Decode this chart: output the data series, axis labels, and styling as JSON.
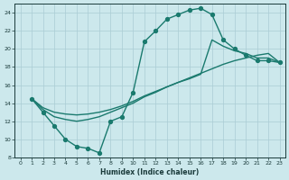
{
  "curve_x": [
    1,
    2,
    3,
    4,
    5,
    6,
    7,
    8,
    9,
    10,
    11,
    12,
    13,
    14,
    15,
    16,
    17,
    18,
    19,
    20,
    21,
    22,
    23
  ],
  "curve_y": [
    14.5,
    13.0,
    11.5,
    10.0,
    9.2,
    9.0,
    8.5,
    12.0,
    12.5,
    15.2,
    20.8,
    22.0,
    23.3,
    23.8,
    24.3,
    24.5,
    23.8,
    21.0,
    20.0,
    19.3,
    18.7,
    18.7,
    18.5
  ],
  "line2_x": [
    1,
    2,
    3,
    4,
    5,
    6,
    7,
    8,
    9,
    10,
    11,
    12,
    13,
    14,
    15,
    16,
    17,
    18,
    19,
    20,
    21,
    22,
    23
  ],
  "line2_y": [
    14.5,
    13.5,
    13.0,
    12.8,
    12.7,
    12.8,
    13.0,
    13.3,
    13.7,
    14.2,
    14.8,
    15.3,
    15.8,
    16.3,
    16.7,
    17.2,
    21.0,
    20.3,
    19.8,
    19.5,
    19.0,
    19.0,
    18.5
  ],
  "line3_x": [
    1,
    2,
    3,
    4,
    5,
    6,
    7,
    8,
    9,
    10,
    11,
    12,
    13,
    14,
    15,
    16,
    17,
    18,
    19,
    20,
    21,
    22,
    23
  ],
  "line3_y": [
    14.5,
    13.3,
    12.5,
    12.2,
    12.0,
    12.2,
    12.5,
    13.0,
    13.5,
    14.0,
    14.7,
    15.2,
    15.8,
    16.3,
    16.8,
    17.3,
    17.8,
    18.3,
    18.7,
    19.0,
    19.3,
    19.5,
    18.5
  ],
  "line_color": "#1a7a6e",
  "bg_color": "#cce8ec",
  "grid_color": "#aaccd4",
  "xlabel": "Humidex (Indice chaleur)",
  "xlim": [
    -0.5,
    23.5
  ],
  "ylim": [
    8,
    25
  ],
  "yticks": [
    8,
    10,
    12,
    14,
    16,
    18,
    20,
    22,
    24
  ],
  "xticks": [
    0,
    1,
    2,
    3,
    4,
    5,
    6,
    7,
    8,
    9,
    10,
    11,
    12,
    13,
    14,
    15,
    16,
    17,
    18,
    19,
    20,
    21,
    22,
    23
  ]
}
